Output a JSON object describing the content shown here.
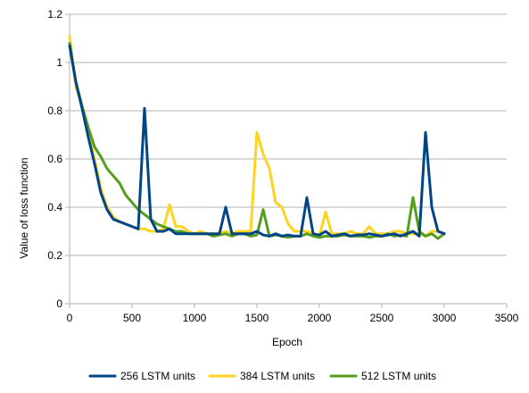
{
  "chart_data": {
    "type": "line",
    "title": "",
    "xlabel": "Epoch",
    "ylabel": "Value of loss function",
    "xlim": [
      0,
      3500
    ],
    "ylim": [
      0,
      1.2
    ],
    "xticks": [
      0,
      500,
      1000,
      1500,
      2000,
      2500,
      3000,
      3500
    ],
    "xtick_labels": [
      "0",
      "500",
      "1000",
      "1500",
      "2000",
      "2500",
      "3000",
      "3500"
    ],
    "yticks": [
      0,
      0.2,
      0.4,
      0.6,
      0.8,
      1.0,
      1.2
    ],
    "ytick_labels": [
      "0",
      "0.2",
      "0.4",
      "0.6",
      "0.8",
      "1",
      "1.2"
    ],
    "grid": "horizontal",
    "legend_position": "bottom",
    "series": [
      {
        "name": "256 LSTM units",
        "color": "#004586",
        "x": [
          0,
          50,
          100,
          150,
          200,
          250,
          300,
          350,
          400,
          450,
          500,
          550,
          600,
          650,
          700,
          750,
          800,
          850,
          900,
          950,
          1000,
          1050,
          1100,
          1150,
          1200,
          1250,
          1300,
          1350,
          1400,
          1450,
          1500,
          1550,
          1600,
          1650,
          1700,
          1750,
          1800,
          1850,
          1900,
          1950,
          2000,
          2050,
          2100,
          2150,
          2200,
          2250,
          2300,
          2350,
          2400,
          2450,
          2500,
          2550,
          2600,
          2650,
          2700,
          2750,
          2800,
          2850,
          2900,
          2950,
          3000
        ],
        "values": [
          1.07,
          0.92,
          0.81,
          0.69,
          0.58,
          0.46,
          0.39,
          0.35,
          0.34,
          0.33,
          0.32,
          0.31,
          0.81,
          0.35,
          0.3,
          0.3,
          0.31,
          0.29,
          0.29,
          0.29,
          0.29,
          0.29,
          0.29,
          0.29,
          0.29,
          0.4,
          0.29,
          0.29,
          0.29,
          0.29,
          0.3,
          0.285,
          0.28,
          0.29,
          0.28,
          0.285,
          0.28,
          0.28,
          0.44,
          0.29,
          0.285,
          0.3,
          0.28,
          0.285,
          0.29,
          0.28,
          0.285,
          0.285,
          0.29,
          0.285,
          0.28,
          0.285,
          0.29,
          0.28,
          0.29,
          0.3,
          0.28,
          0.71,
          0.4,
          0.3,
          0.29
        ]
      },
      {
        "name": "384 LSTM units",
        "color": "#ffd320",
        "x": [
          0,
          50,
          100,
          150,
          200,
          250,
          300,
          350,
          400,
          450,
          500,
          550,
          600,
          650,
          700,
          750,
          800,
          850,
          900,
          950,
          1000,
          1050,
          1100,
          1150,
          1200,
          1250,
          1300,
          1350,
          1400,
          1450,
          1500,
          1550,
          1600,
          1650,
          1700,
          1750,
          1800,
          1850,
          1900,
          1950,
          2000,
          2050,
          2100,
          2150,
          2200,
          2250,
          2300,
          2350,
          2400,
          2450,
          2500,
          2550,
          2600,
          2650,
          2700,
          2750,
          2800,
          2850,
          2900,
          2950,
          3000
        ],
        "values": [
          1.11,
          0.9,
          0.82,
          0.72,
          0.6,
          0.48,
          0.4,
          0.36,
          0.34,
          0.33,
          0.32,
          0.31,
          0.31,
          0.3,
          0.3,
          0.31,
          0.41,
          0.32,
          0.32,
          0.3,
          0.29,
          0.3,
          0.29,
          0.29,
          0.29,
          0.3,
          0.29,
          0.3,
          0.3,
          0.3,
          0.71,
          0.62,
          0.56,
          0.42,
          0.4,
          0.33,
          0.3,
          0.3,
          0.3,
          0.29,
          0.28,
          0.38,
          0.29,
          0.29,
          0.29,
          0.3,
          0.29,
          0.29,
          0.32,
          0.29,
          0.29,
          0.29,
          0.3,
          0.3,
          0.29,
          0.29,
          0.29,
          0.28,
          0.3,
          0.3,
          0.29
        ]
      },
      {
        "name": "512 LSTM units",
        "color": "#579d1c",
        "x": [
          0,
          50,
          100,
          150,
          200,
          250,
          300,
          350,
          400,
          450,
          500,
          550,
          600,
          650,
          700,
          750,
          800,
          850,
          900,
          950,
          1000,
          1050,
          1100,
          1150,
          1200,
          1250,
          1300,
          1350,
          1400,
          1450,
          1500,
          1550,
          1600,
          1650,
          1700,
          1750,
          1800,
          1850,
          1900,
          1950,
          2000,
          2050,
          2100,
          2150,
          2200,
          2250,
          2300,
          2350,
          2400,
          2450,
          2500,
          2550,
          2600,
          2650,
          2700,
          2750,
          2800,
          2850,
          2900,
          2950,
          3000
        ],
        "values": [
          1.08,
          0.92,
          0.82,
          0.73,
          0.65,
          0.61,
          0.56,
          0.53,
          0.5,
          0.45,
          0.42,
          0.39,
          0.37,
          0.35,
          0.33,
          0.32,
          0.31,
          0.3,
          0.3,
          0.29,
          0.29,
          0.29,
          0.29,
          0.28,
          0.285,
          0.29,
          0.28,
          0.29,
          0.29,
          0.28,
          0.285,
          0.39,
          0.28,
          0.285,
          0.28,
          0.275,
          0.28,
          0.28,
          0.29,
          0.28,
          0.275,
          0.28,
          0.28,
          0.28,
          0.285,
          0.28,
          0.28,
          0.28,
          0.275,
          0.28,
          0.28,
          0.29,
          0.28,
          0.285,
          0.28,
          0.44,
          0.3,
          0.28,
          0.29,
          0.27,
          0.29
        ]
      }
    ]
  }
}
